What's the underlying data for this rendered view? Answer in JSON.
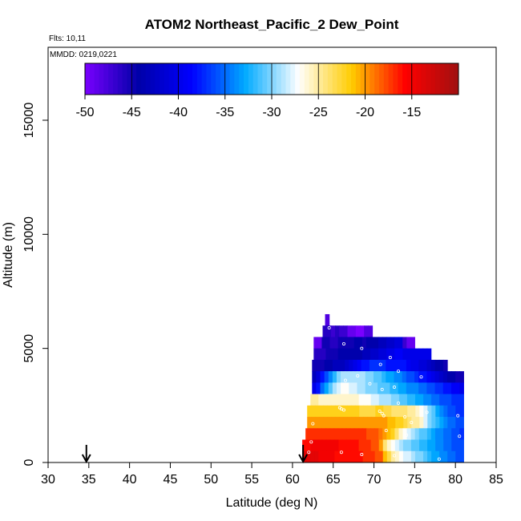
{
  "chart_data": {
    "type": "heatmap",
    "title": "ATOM2 Northeast_Pacific_2 Dew_Point",
    "annotations": [
      "Flts: 10,11",
      "MMDD: 0219,0221"
    ],
    "xlabel": "Latitude (deg N)",
    "ylabel": "Altitude (m)",
    "xlim": [
      30,
      85
    ],
    "ylim": [
      0,
      15000
    ],
    "xticks": [
      30,
      35,
      40,
      45,
      50,
      55,
      60,
      65,
      70,
      75,
      80,
      85
    ],
    "yticks": [
      0,
      5000,
      10000,
      15000
    ],
    "grid": false,
    "colorbar": {
      "placement": "top-inside",
      "range": [
        -50,
        -10
      ],
      "ticks": [
        -50,
        -45,
        -40,
        -35,
        -30,
        -25,
        -20,
        -15
      ],
      "colors": [
        "#7a00ff",
        "#0000a8",
        "#0000ff",
        "#00aaff",
        "#ffffff",
        "#ffcc00",
        "#ff0000",
        "#a01010"
      ]
    },
    "arrows_latitude": [
      34.7,
      61.3
    ],
    "row_height_m": 500,
    "cells": [
      {
        "alt": 6000,
        "lat0": 64.0,
        "lat1": 64.5,
        "values": [
          -48
        ]
      },
      {
        "alt": 5500,
        "lat0": 63.7,
        "lat1": 69.8,
        "values": [
          -46,
          -46,
          -47,
          -46,
          -47,
          -47,
          -49,
          -49,
          -50,
          -50,
          -48,
          -48
        ]
      },
      {
        "alt": 5000,
        "lat0": 62.6,
        "lat1": 75.0,
        "values": [
          -49,
          -49,
          -45,
          -45,
          -46,
          -46,
          -45,
          -45,
          -45,
          -45,
          -44,
          -44,
          -45,
          -44,
          -44,
          -44,
          -43,
          -43,
          -42,
          -42,
          -41,
          -41,
          -47,
          -49,
          -49
        ]
      },
      {
        "alt": 4500,
        "lat0": 62.6,
        "lat1": 77.0,
        "values": [
          -46,
          -46,
          -46,
          -45,
          -45,
          -45,
          -44,
          -44,
          -44,
          -44,
          -44,
          -44,
          -43,
          -43,
          -42,
          -42,
          -41,
          -41,
          -40,
          -40,
          -39,
          -39,
          -40,
          -40,
          -40,
          -40,
          -40,
          -40,
          -40
        ]
      },
      {
        "alt": 4000,
        "lat0": 62.4,
        "lat1": 79.0,
        "values": [
          -45,
          -45,
          -45,
          -44,
          -44,
          -43,
          -43,
          -43,
          -42,
          -41,
          -40,
          -39,
          -38,
          -38,
          -37,
          -37,
          -37,
          -37,
          -38,
          -38,
          -38,
          -38,
          -38,
          -39,
          -40,
          -40,
          -41,
          -41,
          -42,
          -43,
          -44,
          -44,
          -45
        ]
      },
      {
        "alt": 3500,
        "lat0": 62.4,
        "lat1": 81.0,
        "values": [
          -43,
          -41,
          -38,
          -36,
          -34,
          -32,
          -30,
          -29,
          -29,
          -29,
          -29,
          -29,
          -29,
          -30,
          -30,
          -31,
          -31,
          -32,
          -33,
          -33,
          -34,
          -34,
          -35,
          -36,
          -36,
          -37,
          -38,
          -38,
          -39,
          -40,
          -41,
          -42,
          -43,
          -44,
          -44,
          -45,
          -45
        ]
      },
      {
        "alt": 3000,
        "lat0": 62.4,
        "lat1": 81.0,
        "values": [
          -40,
          -38,
          -35,
          -33,
          -31,
          -29,
          -28,
          -27,
          -27,
          -28,
          -28,
          -29,
          -29,
          -30,
          -30,
          -30,
          -31,
          -31,
          -31,
          -32,
          -32,
          -33,
          -33,
          -34,
          -34,
          -34,
          -35,
          -35,
          -36,
          -36,
          -37,
          -37,
          -38,
          -38,
          -39,
          -39,
          -40
        ]
      },
      {
        "alt": 2500,
        "lat0": 62.2,
        "lat1": 81.0,
        "values": [
          -25,
          -25,
          -26,
          -26,
          -26,
          -26,
          -26,
          -26,
          -26,
          -26,
          -26,
          -26,
          -27,
          -27,
          -27,
          -28,
          -28,
          -29,
          -29,
          -29,
          -30,
          -30,
          -31,
          -31,
          -32,
          -32,
          -33,
          -33,
          -34,
          -34,
          -35,
          -35,
          -36,
          -36,
          -36,
          -37,
          -37,
          -37
        ]
      },
      {
        "alt": 2000,
        "lat0": 61.8,
        "lat1": 81.0,
        "values": [
          -22,
          -22,
          -22,
          -22,
          -22,
          -22,
          -22,
          -22,
          -22,
          -22,
          -22,
          -22,
          -22,
          -23,
          -23,
          -23,
          -23,
          -22,
          -22,
          -23,
          -23,
          -24,
          -24,
          -24,
          -24,
          -25,
          -25,
          -26,
          -27,
          -28,
          -30,
          -31,
          -33,
          -34,
          -35,
          -36,
          -36,
          -37,
          -37
        ]
      },
      {
        "alt": 1500,
        "lat0": 61.8,
        "lat1": 81.0,
        "values": [
          -20,
          -20,
          -20,
          -20,
          -20,
          -20,
          -20,
          -20,
          -20,
          -20,
          -20,
          -20,
          -20,
          -20,
          -20,
          -20,
          -20,
          -20,
          -20,
          -20,
          -21,
          -21,
          -22,
          -22,
          -23,
          -24,
          -25,
          -25,
          -26,
          -28,
          -30,
          -31,
          -32,
          -33,
          -34,
          -35,
          -35,
          -36,
          -36
        ]
      },
      {
        "alt": 1000,
        "lat0": 61.6,
        "lat1": 81.0,
        "values": [
          -17,
          -17,
          -17,
          -17,
          -17,
          -17,
          -17,
          -17,
          -17,
          -17,
          -17,
          -17,
          -17,
          -17,
          -17,
          -18,
          -18,
          -18,
          -19,
          -20,
          -21,
          -22,
          -24,
          -26,
          -27,
          -28,
          -29,
          -30,
          -31,
          -31,
          -32,
          -33,
          -34,
          -34,
          -35,
          -35,
          -36,
          -36,
          -37
        ]
      },
      {
        "alt": 500,
        "lat0": 61.2,
        "lat1": 81.0,
        "values": [
          -16,
          -16,
          -15,
          -15,
          -15,
          -15,
          -15,
          -15,
          -15,
          -16,
          -16,
          -16,
          -16,
          -16,
          -17,
          -17,
          -17,
          -18,
          -18,
          -20,
          -24,
          -26,
          -27,
          -28,
          -29,
          -30,
          -30,
          -31,
          -31,
          -32,
          -32,
          -33,
          -33,
          -34,
          -34,
          -35,
          -35,
          -36,
          -36,
          -36
        ]
      },
      {
        "alt": 0,
        "lat0": 61.2,
        "lat1": 81.0,
        "values": [
          -14,
          -14,
          -14,
          -14,
          -15,
          -15,
          -15,
          -15,
          -16,
          -16,
          -16,
          -16,
          -16,
          -16,
          -16,
          -17,
          -17,
          -17,
          -18,
          -18,
          -21,
          -23,
          -25,
          -26,
          -27,
          -28,
          -28,
          -29,
          -30,
          -30,
          -31,
          -32,
          -33,
          -33,
          -34,
          -34,
          -35,
          -35,
          -36,
          -36
        ]
      }
    ],
    "points": [
      {
        "lat": 65.8,
        "alt": 2400
      },
      {
        "lat": 66.0,
        "alt": 2350
      },
      {
        "lat": 66.3,
        "alt": 2300
      },
      {
        "lat": 70.7,
        "alt": 2250
      },
      {
        "lat": 71.0,
        "alt": 2150
      },
      {
        "lat": 71.2,
        "alt": 2050
      },
      {
        "lat": 73.0,
        "alt": 2600
      },
      {
        "lat": 73.8,
        "alt": 2000
      },
      {
        "lat": 74.6,
        "alt": 1750
      },
      {
        "lat": 71.0,
        "alt": 3200
      },
      {
        "lat": 72.5,
        "alt": 3300
      },
      {
        "lat": 69.5,
        "alt": 3450
      },
      {
        "lat": 66.5,
        "alt": 3600
      },
      {
        "lat": 68.0,
        "alt": 3800
      },
      {
        "lat": 70.8,
        "alt": 4300
      },
      {
        "lat": 73.0,
        "alt": 4000
      },
      {
        "lat": 75.8,
        "alt": 3750
      },
      {
        "lat": 72.0,
        "alt": 4600
      },
      {
        "lat": 68.5,
        "alt": 5000
      },
      {
        "lat": 66.3,
        "alt": 5200
      },
      {
        "lat": 64.5,
        "alt": 5900
      },
      {
        "lat": 62.5,
        "alt": 1700
      },
      {
        "lat": 62.3,
        "alt": 900
      },
      {
        "lat": 62.0,
        "alt": 450
      },
      {
        "lat": 71.5,
        "alt": 1400
      },
      {
        "lat": 74.0,
        "alt": 1200
      },
      {
        "lat": 80.5,
        "alt": 1150
      },
      {
        "lat": 80.3,
        "alt": 2050
      },
      {
        "lat": 76.5,
        "alt": 2200
      },
      {
        "lat": 66.0,
        "alt": 450
      },
      {
        "lat": 68.5,
        "alt": 350
      },
      {
        "lat": 72.5,
        "alt": 300
      },
      {
        "lat": 78.0,
        "alt": 150
      }
    ]
  }
}
